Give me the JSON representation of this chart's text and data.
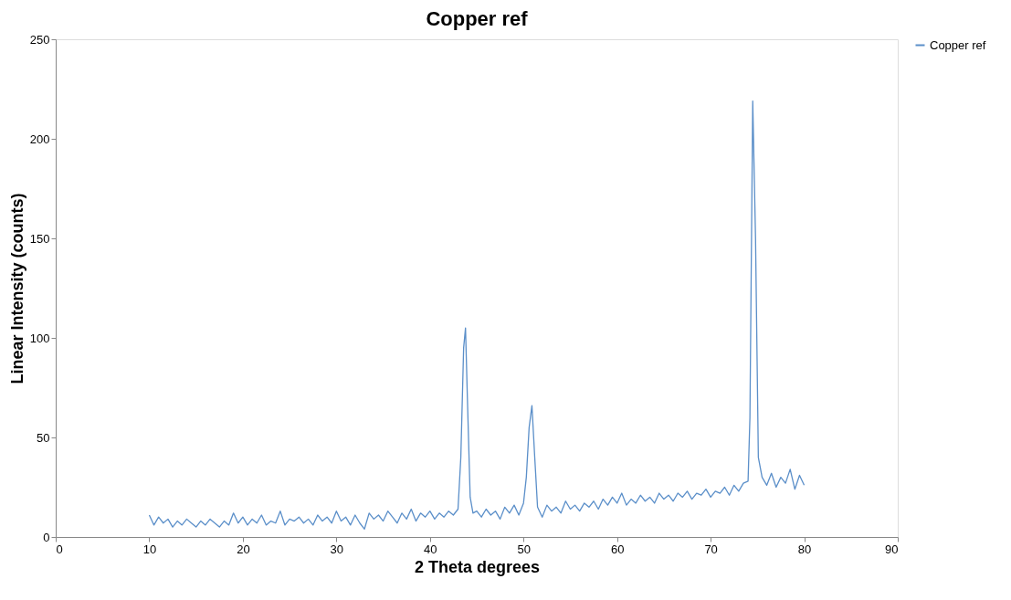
{
  "chart_data": {
    "type": "line",
    "title": "Copper ref",
    "xlabel": "2 Theta degrees",
    "ylabel": "Linear Intensity (counts)",
    "xlim": [
      0,
      90
    ],
    "xticks": [
      0,
      10,
      20,
      30,
      40,
      50,
      60,
      70,
      80,
      90
    ],
    "ylim": [
      0,
      250
    ],
    "yticks": [
      0,
      50,
      100,
      150,
      200,
      250
    ],
    "grid": false,
    "legend": "right",
    "marker": "none",
    "line_style": "solid",
    "series": [
      {
        "name": "Copper ref",
        "color": "#5b8fc9",
        "x": [
          10,
          10.5,
          11,
          11.5,
          12,
          12.5,
          13,
          13.5,
          14,
          14.5,
          15,
          15.5,
          16,
          16.5,
          17,
          17.5,
          18,
          18.5,
          19,
          19.5,
          20,
          20.5,
          21,
          21.5,
          22,
          22.5,
          23,
          23.5,
          24,
          24.5,
          25,
          25.5,
          26,
          26.5,
          27,
          27.5,
          28,
          28.5,
          29,
          29.5,
          30,
          30.5,
          31,
          31.5,
          32,
          32.5,
          33,
          33.5,
          34,
          34.5,
          35,
          35.5,
          36,
          36.5,
          37,
          37.5,
          38,
          38.5,
          39,
          39.5,
          40,
          40.5,
          41,
          41.5,
          42,
          42.5,
          43,
          43.3,
          43.6,
          43.8,
          44,
          44.3,
          44.6,
          45,
          45.5,
          46,
          46.5,
          47,
          47.5,
          48,
          48.5,
          49,
          49.5,
          50,
          50.3,
          50.6,
          50.9,
          51.2,
          51.5,
          52,
          52.5,
          53,
          53.5,
          54,
          54.5,
          55,
          55.5,
          56,
          56.5,
          57,
          57.5,
          58,
          58.5,
          59,
          59.5,
          60,
          60.5,
          61,
          61.5,
          62,
          62.5,
          63,
          63.5,
          64,
          64.5,
          65,
          65.5,
          66,
          66.5,
          67,
          67.5,
          68,
          68.5,
          69,
          69.5,
          70,
          70.5,
          71,
          71.5,
          72,
          72.5,
          73,
          73.5,
          74,
          74.2,
          74.5,
          74.8,
          75.1,
          75.5,
          76,
          76.5,
          77,
          77.5,
          78,
          78.5,
          79,
          79.5,
          80
        ],
        "values": [
          11,
          6,
          10,
          7,
          9,
          5,
          8,
          6,
          9,
          7,
          5,
          8,
          6,
          9,
          7,
          5,
          8,
          6,
          12,
          7,
          10,
          6,
          9,
          7,
          11,
          6,
          8,
          7,
          13,
          6,
          9,
          8,
          10,
          7,
          9,
          6,
          11,
          8,
          10,
          7,
          13,
          8,
          10,
          6,
          11,
          7,
          4,
          12,
          9,
          11,
          8,
          13,
          10,
          7,
          12,
          9,
          14,
          8,
          12,
          10,
          13,
          9,
          12,
          10,
          13,
          11,
          14,
          40,
          95,
          105,
          70,
          20,
          12,
          13,
          10,
          14,
          11,
          13,
          9,
          15,
          12,
          16,
          11,
          17,
          30,
          55,
          66,
          40,
          15,
          10,
          16,
          13,
          15,
          12,
          18,
          14,
          16,
          13,
          17,
          15,
          18,
          14,
          19,
          16,
          20,
          17,
          22,
          16,
          19,
          17,
          21,
          18,
          20,
          17,
          22,
          19,
          21,
          18,
          22,
          20,
          23,
          19,
          22,
          21,
          24,
          20,
          23,
          22,
          25,
          21,
          26,
          23,
          27,
          28,
          60,
          219,
          150,
          40,
          30,
          26,
          32,
          25,
          30,
          27,
          34,
          24,
          31,
          26
        ]
      }
    ]
  }
}
